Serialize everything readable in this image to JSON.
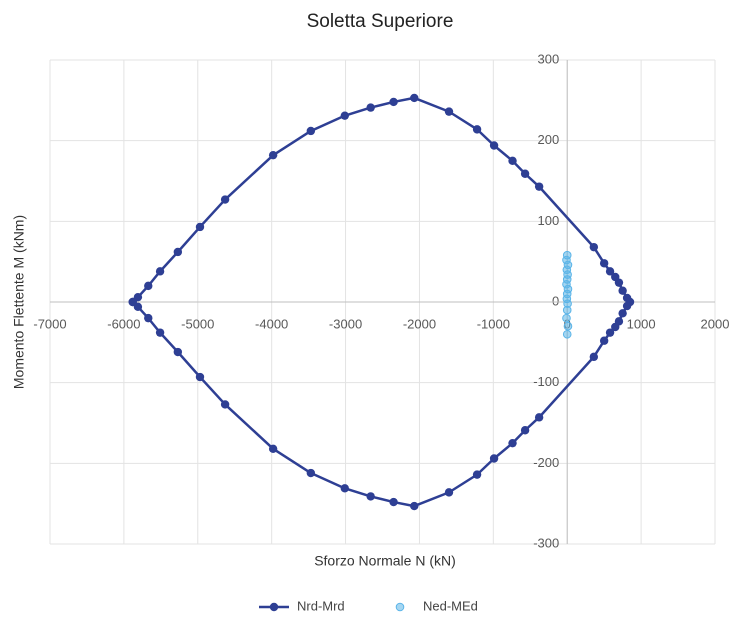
{
  "chart_data": {
    "type": "scatter",
    "title": "Soletta Superiore",
    "xlabel": "Sforzo Normale N (kN)",
    "ylabel": "Momento Flettente M (kNm)",
    "xlim": [
      -7000,
      2000
    ],
    "xticks": [
      -7000,
      -6000,
      -5000,
      -4000,
      -3000,
      -2000,
      -1000,
      0,
      1000,
      2000
    ],
    "ylim": [
      -300,
      300
    ],
    "yticks": [
      -300,
      -200,
      -100,
      0,
      100,
      200,
      300
    ],
    "grid": true,
    "legend": "bottom",
    "series": [
      {
        "name": "Nrd-Mrd",
        "color": "#2e3f94",
        "line": true,
        "x": [
          -5880,
          -5810,
          -5670,
          -5510,
          -5270,
          -4970,
          -4630,
          -3980,
          -3470,
          -3010,
          -2660,
          -2350,
          -2070,
          -1600,
          -1220,
          -990,
          -740,
          -570,
          -380,
          360,
          500,
          580,
          650,
          700,
          750,
          810,
          850,
          810,
          750,
          700,
          650,
          580,
          500,
          360,
          -380,
          -570,
          -740,
          -990,
          -1220,
          -1600,
          -2070,
          -2350,
          -2660,
          -3010,
          -3470,
          -3980,
          -4630,
          -4970,
          -5270,
          -5510,
          -5670,
          -5810,
          -5880
        ],
        "values": [
          0,
          6,
          20,
          38,
          62,
          93,
          127,
          182,
          212,
          231,
          241,
          248,
          253,
          236,
          214,
          194,
          175,
          159,
          143,
          68,
          48,
          38,
          31,
          24,
          14,
          5,
          0,
          -5,
          -14,
          -24,
          -31,
          -38,
          -48,
          -68,
          -143,
          -159,
          -175,
          -194,
          -214,
          -236,
          -253,
          -248,
          -241,
          -231,
          -212,
          -182,
          -127,
          -93,
          -62,
          -38,
          -20,
          -6,
          0
        ]
      },
      {
        "name": "Ned-MEd",
        "color": "#5ab4e8",
        "line": false,
        "x": [
          0,
          -10,
          10,
          -5,
          5,
          0,
          -10,
          10,
          0,
          -5,
          5,
          0,
          -10,
          10,
          0
        ],
        "values": [
          58,
          52,
          46,
          40,
          34,
          28,
          22,
          16,
          10,
          4,
          -2,
          -10,
          -20,
          -30,
          -40
        ]
      }
    ]
  }
}
